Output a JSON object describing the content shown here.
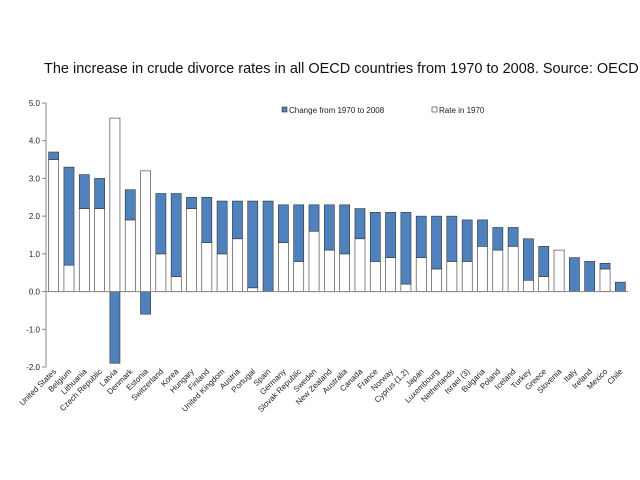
{
  "chart_data": {
    "type": "bar",
    "title": "The increase in crude divorce rates in all OECD countries from 1970 to 2008.  Source: OECD",
    "xlabel": "",
    "ylabel": "",
    "ylim": [
      -2.0,
      5.0
    ],
    "yticks": [
      "5.0",
      "4.0",
      "3.0",
      "2.0",
      "1.0",
      "0.0",
      "-1.0",
      "-2.0"
    ],
    "ytick_values": [
      5,
      4,
      3,
      2,
      1,
      0,
      -1,
      -2
    ],
    "legend_position": "top",
    "colors": {
      "change": "#4f81bd",
      "rate1970": "#ffffff",
      "outline": "#333333"
    },
    "series": [
      {
        "name": "Change from 1970 to 2008",
        "key": "change"
      },
      {
        "name": "Rate in 1970",
        "key": "rate1970"
      }
    ],
    "categories": [
      "United States",
      "Belgium",
      "Lithuania",
      "Czech Republic",
      "Latvia",
      "Denmark",
      "Estonia",
      "Switzerland",
      "Korea",
      "Hungary",
      "Finland",
      "United Kingdom",
      "Austria",
      "Portugal",
      "Spain",
      "Germany",
      "Slovak Republic",
      "Sweden",
      "New Zealand",
      "Australia",
      "Canada",
      "France",
      "Norway",
      "Cyprus (1,2)",
      "Japan",
      "Luxembourg",
      "Netherlands",
      "Israel (3)",
      "Bulgaria",
      "Poland",
      "Iceland",
      "Turkey",
      "Greece",
      "Slovenia",
      "Italy",
      "Ireland",
      "Mexico",
      "Chile"
    ],
    "rate1970": [
      3.5,
      0.7,
      2.2,
      2.2,
      4.6,
      1.9,
      3.2,
      1.0,
      0.4,
      2.2,
      1.3,
      1.0,
      1.4,
      0.1,
      0.0,
      1.3,
      0.8,
      1.6,
      1.1,
      1.0,
      1.4,
      0.8,
      0.9,
      0.2,
      0.9,
      0.6,
      0.8,
      0.8,
      1.2,
      1.1,
      1.2,
      0.3,
      0.4,
      1.1,
      0.0,
      0.0,
      0.6,
      0.0
    ],
    "change": [
      0.2,
      2.6,
      0.9,
      0.8,
      -1.9,
      0.8,
      -0.6,
      1.6,
      2.2,
      0.3,
      1.2,
      1.4,
      1.0,
      2.3,
      2.4,
      1.0,
      1.5,
      0.7,
      1.2,
      1.3,
      0.8,
      1.3,
      1.2,
      1.9,
      1.1,
      1.4,
      1.2,
      1.1,
      0.7,
      0.6,
      0.5,
      1.1,
      0.8,
      0.0,
      0.9,
      0.8,
      0.15,
      0.25
    ]
  }
}
